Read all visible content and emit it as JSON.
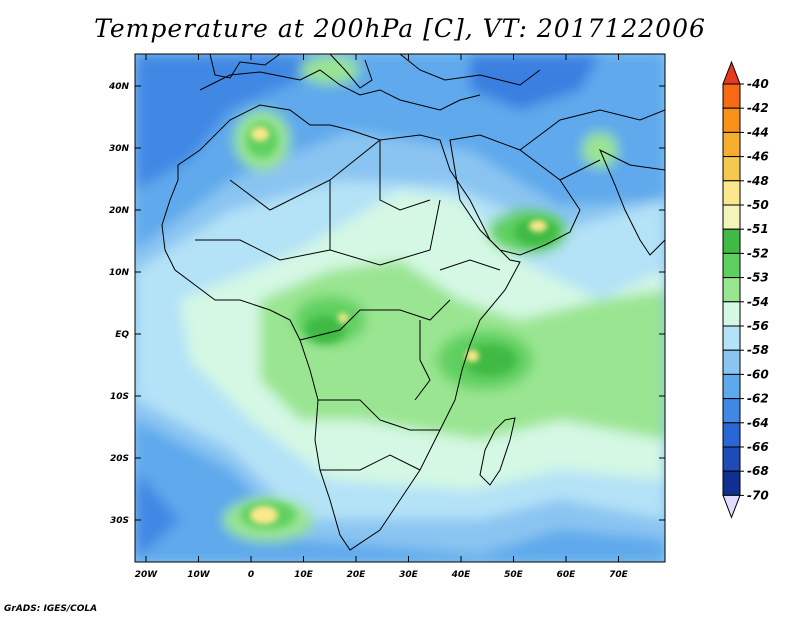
{
  "title": "Temperature at 200hPa [C], VT: 2017122006",
  "credit": "GrADS: IGES/COLA",
  "map": {
    "lat_labels": [
      "40N",
      "30N",
      "20N",
      "10N",
      "EQ",
      "10S",
      "20S",
      "30S"
    ],
    "lon_labels": [
      "20W",
      "10W",
      "0",
      "10E",
      "20E",
      "30E",
      "40E",
      "50E",
      "60E",
      "70E"
    ]
  },
  "colorbar": {
    "labels": [
      "-40",
      "-42",
      "-44",
      "-46",
      "-48",
      "-50",
      "-51",
      "-52",
      "-53",
      "-54",
      "-56",
      "-58",
      "-60",
      "-62",
      "-64",
      "-66",
      "-68",
      "-70"
    ],
    "colors": [
      "#e8381f",
      "#f56a13",
      "#f8901a",
      "#f4ad2e",
      "#f5c94f",
      "#fbe88c",
      "#f3f4b9",
      "#3fba44",
      "#5ed060",
      "#9ae591",
      "#d4f8e4",
      "#b4e2f7",
      "#8ac4f1",
      "#5ea9ec",
      "#4188e4",
      "#2a66d6",
      "#1e4bb8",
      "#10308f",
      "#0a1a78"
    ]
  }
}
